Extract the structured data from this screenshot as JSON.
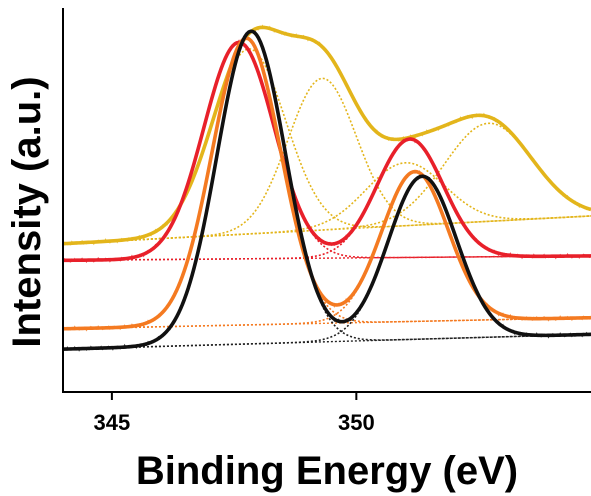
{
  "chart_data": {
    "type": "line",
    "title": "",
    "xlabel": "Binding Energy (eV)",
    "ylabel": "Intensity (a.u.)",
    "xlim": [
      344.0,
      354.8
    ],
    "ylim": [
      0,
      1.0
    ],
    "x_ticks": [
      345,
      350
    ],
    "x_tick_labels": [
      "345",
      "350"
    ],
    "y_ticks_shown": false,
    "grid": false,
    "legend": "none",
    "colors": {
      "black": "#111111",
      "red": "#e8202a",
      "orange": "#f47a21",
      "yellow": "#e3b51b",
      "fit_dotted_black": "#222222",
      "fit_dotted_red": "#e8202a",
      "fit_dotted_orange": "#f47a21",
      "fit_dotted_yellow": "#e3b51b"
    },
    "series": [
      {
        "color": "yellow",
        "baseline": [
          [
            344.0,
            0.39
          ],
          [
            354.8,
            0.465
          ]
        ],
        "peaks": [
          {
            "center": 347.8,
            "sigma": 0.75,
            "height": 0.5
          },
          {
            "center": 349.3,
            "sigma": 0.7,
            "height": 0.41
          },
          {
            "center": 351.0,
            "sigma": 0.8,
            "height": 0.17
          },
          {
            "center": 352.7,
            "sigma": 0.9,
            "height": 0.265
          }
        ]
      },
      {
        "color": "red",
        "baseline": [
          [
            344.0,
            0.345
          ],
          [
            354.8,
            0.357
          ]
        ],
        "peaks": [
          {
            "center": 347.6,
            "sigma": 0.72,
            "height": 0.585
          },
          {
            "center": 351.1,
            "sigma": 0.68,
            "height": 0.32
          }
        ]
      },
      {
        "color": "orange",
        "baseline": [
          [
            344.0,
            0.16
          ],
          [
            354.8,
            0.19
          ]
        ],
        "peaks": [
          {
            "center": 347.75,
            "sigma": 0.7,
            "height": 0.775
          },
          {
            "center": 351.2,
            "sigma": 0.68,
            "height": 0.405
          }
        ]
      },
      {
        "color": "black",
        "baseline": [
          [
            344.0,
            0.105
          ],
          [
            354.8,
            0.145
          ]
        ],
        "peaks": [
          {
            "center": 347.85,
            "sigma": 0.7,
            "height": 0.845
          },
          {
            "center": 351.35,
            "sigma": 0.7,
            "height": 0.44
          }
        ]
      }
    ]
  }
}
